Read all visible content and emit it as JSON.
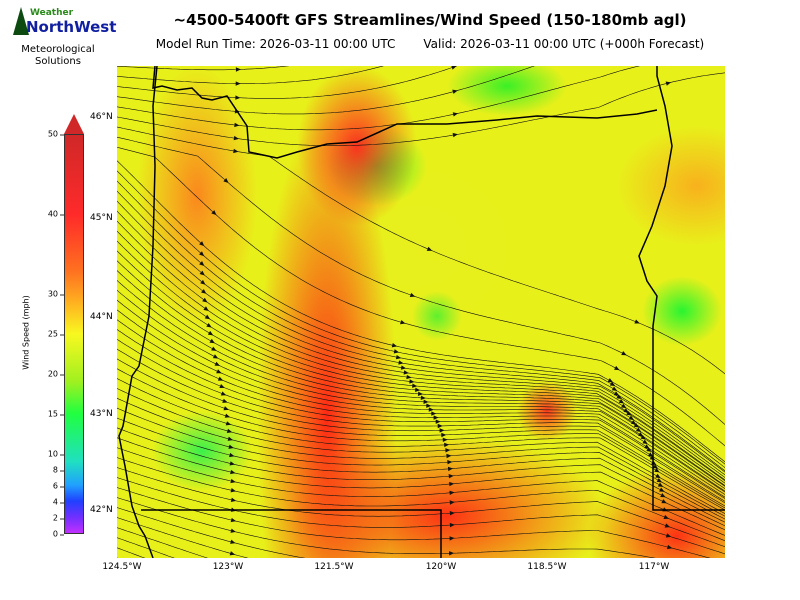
{
  "logo": {
    "top": "Weather",
    "brand": "NorthWest",
    "subtitle_line1": "Meteorological",
    "subtitle_line2": "Solutions"
  },
  "header": {
    "title": "~4500-5400ft GFS Streamlines/Wind Speed (150-180mb agl)",
    "model_run": "Model Run Time: 2026-03-11 00:00 UTC",
    "valid": "Valid: 2026-03-11 00:00 UTC  (+000h Forecast)"
  },
  "map": {
    "lat_labels": [
      "46°N",
      "45°N",
      "44°N",
      "43°N",
      "42°N"
    ],
    "lon_labels": [
      "124.5°W",
      "123°W",
      "121.5°W",
      "120°W",
      "118.5°W",
      "117°W"
    ]
  },
  "colorbar": {
    "label": "Wind Speed (mph)",
    "ticks": [
      "50",
      "40",
      "30",
      "25",
      "20",
      "15",
      "10",
      "8",
      "6",
      "4",
      "2",
      "0"
    ],
    "colors": [
      "#c030ff",
      "#2040ff",
      "#20ff40",
      "#f8f820",
      "#ff7020",
      "#ff2a2a",
      "#d02828"
    ]
  }
}
